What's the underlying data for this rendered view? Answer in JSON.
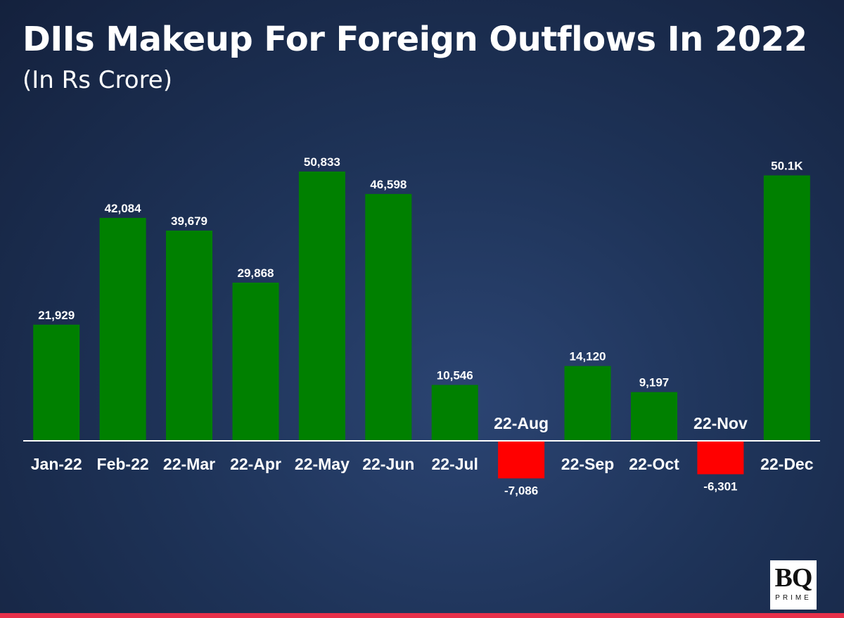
{
  "header": {
    "title": "DIIs Makeup For Foreign Outflows In 2022",
    "subtitle": "(In Rs Crore)"
  },
  "colors": {
    "positive": "#008000",
    "negative": "#ff0000",
    "axis": "#ffffff",
    "accent_strip": "#e8304a"
  },
  "logo": {
    "main": "BQ",
    "sub": "PRIME"
  },
  "chart_data": {
    "type": "bar",
    "title": "DIIs Makeup For Foreign Outflows In 2022",
    "subtitle": "(In Rs Crore)",
    "categories": [
      "Jan-22",
      "Feb-22",
      "22-Mar",
      "22-Apr",
      "22-May",
      "22-Jun",
      "22-Jul",
      "22-Aug",
      "22-Sep",
      "22-Oct",
      "22-Nov",
      "22-Dec"
    ],
    "values": [
      21929,
      42084,
      39679,
      29868,
      50833,
      46598,
      10546,
      -7086,
      14120,
      9197,
      -6301,
      50100
    ],
    "data_labels": [
      "21,929",
      "42,084",
      "39,679",
      "29,868",
      "50,833",
      "46,598",
      "10,546",
      "-7,086",
      "14,120",
      "9,197",
      "-6,301",
      "50.1K"
    ],
    "xlabel": "",
    "ylabel": "",
    "ylim": [
      -10000,
      55000
    ],
    "grid": false,
    "legend": "none"
  }
}
